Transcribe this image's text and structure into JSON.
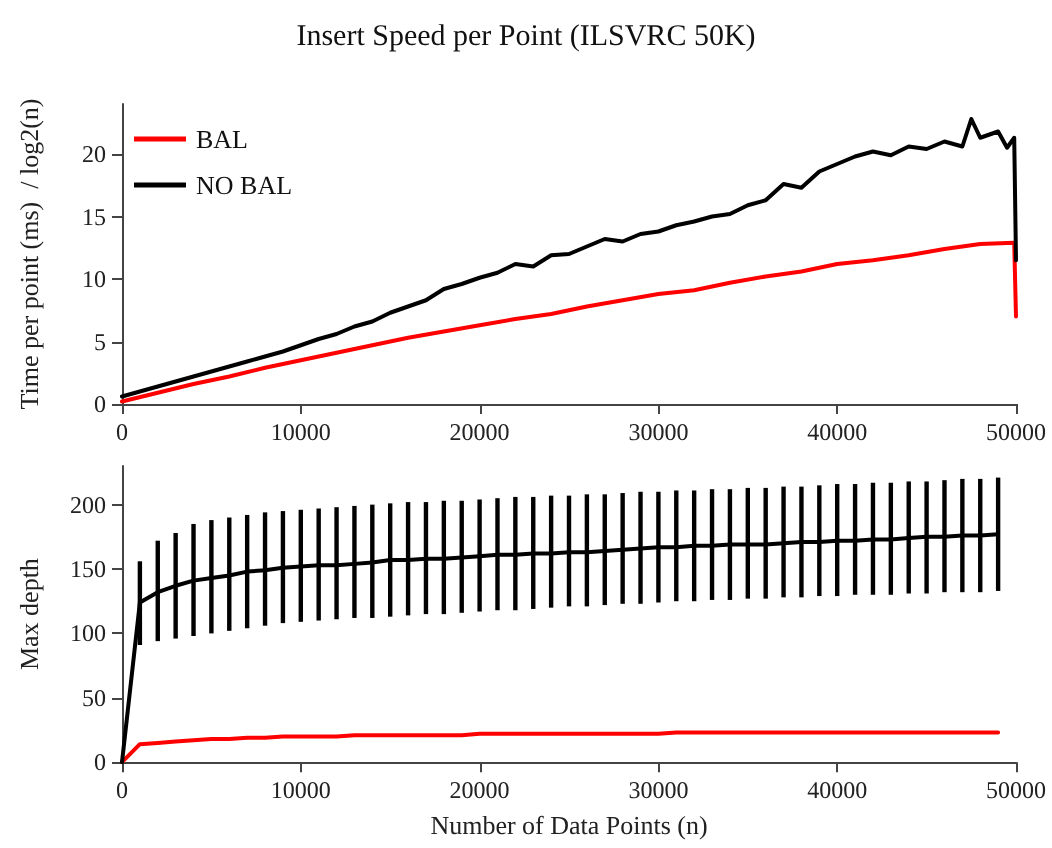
{
  "chart_data": [
    {
      "type": "line",
      "title": "Insert Speed per Point (ILSVRC 50K)",
      "ylabel": "Time per point (ms)  / log2(n)",
      "xlim": [
        0,
        50000
      ],
      "xticks": [
        0,
        10000,
        20000,
        30000,
        40000,
        50000
      ],
      "ylim": [
        0,
        24
      ],
      "yticks": [
        0,
        5,
        10,
        15,
        20
      ],
      "grid": false,
      "legend": "top left",
      "marker": "none",
      "line_style": "solid",
      "series": [
        {
          "name": "BAL",
          "color": "#ff0000",
          "x": [
            0,
            2000,
            4000,
            6000,
            8000,
            10000,
            12000,
            14000,
            16000,
            18000,
            20000,
            22000,
            24000,
            26000,
            28000,
            30000,
            32000,
            34000,
            36000,
            38000,
            40000,
            42000,
            44000,
            46000,
            48000,
            49900,
            50000
          ],
          "values": [
            0.2,
            0.9,
            1.6,
            2.2,
            2.9,
            3.5,
            4.1,
            4.7,
            5.3,
            5.8,
            6.3,
            6.8,
            7.2,
            7.8,
            8.3,
            8.8,
            9.1,
            9.7,
            10.2,
            10.6,
            11.2,
            11.5,
            11.9,
            12.4,
            12.8,
            12.9,
            7.0
          ]
        },
        {
          "name": "NO BAL",
          "color": "#000000",
          "x": [
            0,
            1000,
            2000,
            3000,
            4000,
            5000,
            6000,
            7000,
            8000,
            9000,
            10000,
            11000,
            12000,
            13000,
            14000,
            15000,
            16000,
            17000,
            18000,
            19000,
            20000,
            21000,
            22000,
            23000,
            24000,
            25000,
            26000,
            27000,
            28000,
            29000,
            30000,
            31000,
            32000,
            33000,
            34000,
            35000,
            36000,
            37000,
            38000,
            39000,
            40000,
            41000,
            42000,
            43000,
            44000,
            45000,
            46000,
            47000,
            47500,
            48000,
            49000,
            49500,
            49900,
            50000
          ],
          "values": [
            0.6,
            1.0,
            1.4,
            1.8,
            2.2,
            2.6,
            3.0,
            3.4,
            3.8,
            4.2,
            4.7,
            5.2,
            5.6,
            6.2,
            6.6,
            7.3,
            7.8,
            8.3,
            9.2,
            9.6,
            10.1,
            10.5,
            11.2,
            11.0,
            11.9,
            12.0,
            12.6,
            13.2,
            13.0,
            13.6,
            13.8,
            14.3,
            14.6,
            15.0,
            15.2,
            15.9,
            16.3,
            17.6,
            17.3,
            18.6,
            19.2,
            19.8,
            20.2,
            19.9,
            20.6,
            20.4,
            21.0,
            20.6,
            22.8,
            21.3,
            21.8,
            20.5,
            21.3,
            11.5
          ]
        }
      ]
    },
    {
      "type": "line",
      "xlabel": "Number of Data Points (n)",
      "ylabel": "Max depth",
      "xlim": [
        0,
        50000
      ],
      "xticks": [
        0,
        10000,
        20000,
        30000,
        40000,
        50000
      ],
      "ylim": [
        0,
        230
      ],
      "yticks": [
        0,
        50,
        100,
        150,
        200
      ],
      "grid": false,
      "legend": false,
      "marker": "none",
      "line_style": "solid",
      "x": [
        0,
        1000,
        2000,
        3000,
        4000,
        5000,
        6000,
        7000,
        8000,
        9000,
        10000,
        11000,
        12000,
        13000,
        14000,
        15000,
        16000,
        17000,
        18000,
        19000,
        20000,
        21000,
        22000,
        23000,
        24000,
        25000,
        26000,
        27000,
        28000,
        29000,
        30000,
        31000,
        32000,
        33000,
        34000,
        35000,
        36000,
        37000,
        38000,
        39000,
        40000,
        41000,
        42000,
        43000,
        44000,
        45000,
        46000,
        47000,
        48000,
        49000
      ],
      "series": [
        {
          "color": "#ff0000",
          "values": [
            0,
            14,
            15,
            16,
            17,
            18,
            18,
            19,
            19,
            20,
            20,
            20,
            20,
            21,
            21,
            21,
            21,
            21,
            21,
            21,
            22,
            22,
            22,
            22,
            22,
            22,
            22,
            22,
            22,
            22,
            22,
            23,
            23,
            23,
            23,
            23,
            23,
            23,
            23,
            23,
            23,
            23,
            23,
            23,
            23,
            23,
            23,
            23,
            23,
            23
          ]
        },
        {
          "color": "#000000",
          "values": [
            0,
            124,
            132,
            137,
            141,
            143,
            145,
            148,
            149,
            151,
            152,
            153,
            153,
            154,
            155,
            157,
            157,
            158,
            158,
            159,
            160,
            161,
            161,
            162,
            162,
            163,
            163,
            164,
            165,
            166,
            167,
            167,
            168,
            168,
            169,
            169,
            169,
            170,
            171,
            171,
            172,
            172,
            173,
            173,
            174,
            175,
            175,
            176,
            176,
            177
          ],
          "errors": [
            null,
            [
              91,
              156
            ],
            [
              94,
              172
            ],
            [
              96,
              178
            ],
            [
              98,
              185
            ],
            [
              100,
              188
            ],
            [
              102,
              190
            ],
            [
              104,
              192
            ],
            [
              106,
              194
            ],
            [
              108,
              195
            ],
            [
              109,
              196
            ],
            [
              110,
              197
            ],
            [
              111,
              198
            ],
            [
              112,
              199
            ],
            [
              112,
              200
            ],
            [
              113,
              201
            ],
            [
              114,
              202
            ],
            [
              115,
              202
            ],
            [
              115,
              203
            ],
            [
              116,
              203
            ],
            [
              117,
              204
            ],
            [
              118,
              205
            ],
            [
              118,
              206
            ],
            [
              119,
              206
            ],
            [
              120,
              207
            ],
            [
              121,
              207
            ],
            [
              121,
              208
            ],
            [
              122,
              208
            ],
            [
              123,
              209
            ],
            [
              123,
              210
            ],
            [
              124,
              210
            ],
            [
              125,
              211
            ],
            [
              125,
              211
            ],
            [
              126,
              212
            ],
            [
              126,
              212
            ],
            [
              127,
              213
            ],
            [
              127,
              213
            ],
            [
              128,
              214
            ],
            [
              128,
              214
            ],
            [
              129,
              215
            ],
            [
              129,
              216
            ],
            [
              130,
              216
            ],
            [
              130,
              217
            ],
            [
              130,
              217
            ],
            [
              131,
              218
            ],
            [
              131,
              218
            ],
            [
              132,
              219
            ],
            [
              132,
              220
            ],
            [
              132,
              220
            ],
            [
              133,
              221
            ]
          ]
        }
      ]
    }
  ]
}
